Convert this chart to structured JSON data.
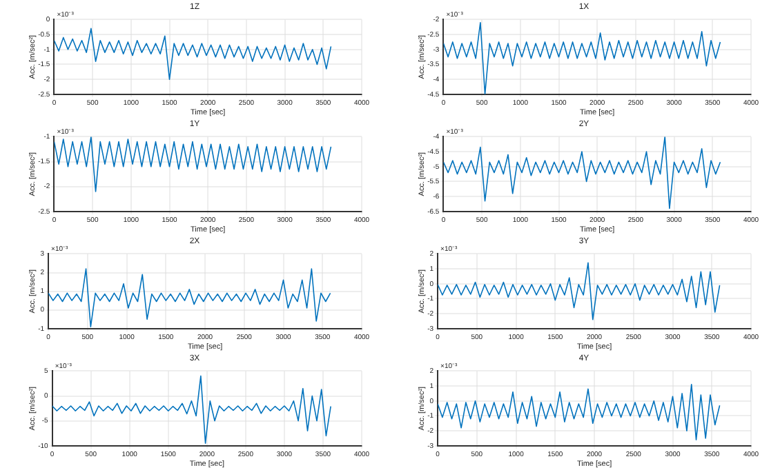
{
  "chart_data": [
    {
      "type": "line",
      "title": "1Z",
      "xlabel": "Time [sec]",
      "ylabel": "Acc. [m/sec²]",
      "annotations": [
        "×10⁻³"
      ],
      "xlim": [
        0,
        4000
      ],
      "xticks": [
        0,
        500,
        1000,
        1500,
        2000,
        2500,
        3000,
        3500,
        4000
      ],
      "ylim": [
        -2.5,
        0
      ],
      "yticks": [
        -2.5,
        -2,
        -1.5,
        -1,
        -0.5,
        0
      ],
      "grid": true,
      "marker": "none",
      "x": [
        0,
        60,
        120,
        180,
        240,
        300,
        360,
        420,
        480,
        540,
        600,
        660,
        720,
        780,
        840,
        900,
        960,
        1020,
        1080,
        1140,
        1200,
        1260,
        1320,
        1380,
        1440,
        1500,
        1560,
        1620,
        1680,
        1740,
        1800,
        1860,
        1920,
        1980,
        2040,
        2100,
        2160,
        2220,
        2280,
        2340,
        2400,
        2460,
        2520,
        2580,
        2640,
        2700,
        2760,
        2820,
        2880,
        2940,
        3000,
        3060,
        3120,
        3180,
        3240,
        3300,
        3360,
        3420,
        3480,
        3540,
        3600
      ],
      "series": [
        {
          "color": "#0072bd",
          "values": [
            -0.7,
            -1.05,
            -0.6,
            -1.0,
            -0.65,
            -1.05,
            -0.7,
            -1.1,
            -0.3,
            -1.4,
            -0.7,
            -1.1,
            -0.75,
            -1.1,
            -0.7,
            -1.15,
            -0.75,
            -1.2,
            -0.7,
            -1.1,
            -0.8,
            -1.15,
            -0.8,
            -1.15,
            -0.55,
            -2.0,
            -0.8,
            -1.2,
            -0.8,
            -1.2,
            -0.85,
            -1.25,
            -0.8,
            -1.2,
            -0.85,
            -1.25,
            -0.85,
            -1.3,
            -0.85,
            -1.25,
            -0.9,
            -1.3,
            -0.9,
            -1.4,
            -0.9,
            -1.3,
            -0.95,
            -1.3,
            -0.9,
            -1.35,
            -0.85,
            -1.4,
            -0.95,
            -1.35,
            -0.8,
            -1.35,
            -1.0,
            -1.5,
            -0.95,
            -1.65,
            -0.9
          ]
        }
      ]
    },
    {
      "type": "line",
      "title": "1X",
      "xlabel": "Time [sec]",
      "ylabel": "Acc. [m/sec²]",
      "annotations": [
        "×10⁻³"
      ],
      "xlim": [
        0,
        4000
      ],
      "xticks": [
        0,
        500,
        1000,
        1500,
        2000,
        2500,
        3000,
        3500,
        4000
      ],
      "ylim": [
        -4.5,
        -2
      ],
      "yticks": [
        -4.5,
        -4,
        -3.5,
        -3,
        -2.5,
        -2
      ],
      "grid": true,
      "marker": "none",
      "x": [
        0,
        60,
        120,
        180,
        240,
        300,
        360,
        420,
        480,
        540,
        600,
        660,
        720,
        780,
        840,
        900,
        960,
        1020,
        1080,
        1140,
        1200,
        1260,
        1320,
        1380,
        1440,
        1500,
        1560,
        1620,
        1680,
        1740,
        1800,
        1860,
        1920,
        1980,
        2040,
        2100,
        2160,
        2220,
        2280,
        2340,
        2400,
        2460,
        2520,
        2580,
        2640,
        2700,
        2760,
        2820,
        2880,
        2940,
        3000,
        3060,
        3120,
        3180,
        3240,
        3300,
        3360,
        3420,
        3480,
        3540,
        3600
      ],
      "series": [
        {
          "color": "#0072bd",
          "values": [
            -2.8,
            -3.25,
            -2.75,
            -3.3,
            -2.8,
            -3.25,
            -2.75,
            -3.3,
            -2.1,
            -4.5,
            -2.8,
            -3.25,
            -2.75,
            -3.3,
            -2.8,
            -3.55,
            -2.8,
            -3.25,
            -2.75,
            -3.3,
            -2.8,
            -3.25,
            -2.75,
            -3.3,
            -2.8,
            -3.25,
            -2.75,
            -3.3,
            -2.75,
            -3.3,
            -2.8,
            -3.25,
            -2.75,
            -3.3,
            -2.45,
            -3.35,
            -2.75,
            -3.3,
            -2.7,
            -3.25,
            -2.75,
            -3.3,
            -2.7,
            -3.25,
            -2.75,
            -3.3,
            -2.7,
            -3.25,
            -2.75,
            -3.3,
            -2.75,
            -3.3,
            -2.7,
            -3.3,
            -2.75,
            -3.3,
            -2.4,
            -3.55,
            -2.7,
            -3.3,
            -2.75
          ]
        }
      ]
    },
    {
      "type": "line",
      "title": "1Y",
      "xlabel": "Time [sec]",
      "ylabel": "Acc. [m/sec²]",
      "annotations": [
        "×10⁻³"
      ],
      "xlim": [
        0,
        4000
      ],
      "xticks": [
        0,
        500,
        1000,
        1500,
        2000,
        2500,
        3000,
        3500,
        4000
      ],
      "ylim": [
        -2.5,
        -1
      ],
      "yticks": [
        -2.5,
        -2,
        -1.5,
        -1
      ],
      "grid": true,
      "marker": "none",
      "x": [
        0,
        60,
        120,
        180,
        240,
        300,
        360,
        420,
        480,
        540,
        600,
        660,
        720,
        780,
        840,
        900,
        960,
        1020,
        1080,
        1140,
        1200,
        1260,
        1320,
        1380,
        1440,
        1500,
        1560,
        1620,
        1680,
        1740,
        1800,
        1860,
        1920,
        1980,
        2040,
        2100,
        2160,
        2220,
        2280,
        2340,
        2400,
        2460,
        2520,
        2580,
        2640,
        2700,
        2760,
        2820,
        2880,
        2940,
        3000,
        3060,
        3120,
        3180,
        3240,
        3300,
        3360,
        3420,
        3480,
        3540,
        3600
      ],
      "series": [
        {
          "color": "#0072bd",
          "values": [
            -1.1,
            -1.55,
            -1.05,
            -1.6,
            -1.1,
            -1.55,
            -1.1,
            -1.6,
            -1.0,
            -2.1,
            -1.1,
            -1.55,
            -1.1,
            -1.6,
            -1.1,
            -1.6,
            -1.05,
            -1.55,
            -1.1,
            -1.6,
            -1.1,
            -1.6,
            -1.1,
            -1.6,
            -1.15,
            -1.6,
            -1.1,
            -1.65,
            -1.15,
            -1.6,
            -1.1,
            -1.65,
            -1.15,
            -1.6,
            -1.15,
            -1.65,
            -1.15,
            -1.65,
            -1.2,
            -1.65,
            -1.15,
            -1.65,
            -1.2,
            -1.65,
            -1.15,
            -1.7,
            -1.2,
            -1.65,
            -1.2,
            -1.7,
            -1.2,
            -1.65,
            -1.2,
            -1.7,
            -1.2,
            -1.65,
            -1.2,
            -1.7,
            -1.2,
            -1.65,
            -1.2
          ]
        }
      ]
    },
    {
      "type": "line",
      "title": "2Y",
      "xlabel": "Time [sec]",
      "ylabel": "Acc. [m/sec²]",
      "annotations": [
        "×10⁻³"
      ],
      "xlim": [
        0,
        4000
      ],
      "xticks": [
        0,
        500,
        1000,
        1500,
        2000,
        2500,
        3000,
        3500,
        4000
      ],
      "ylim": [
        -6.5,
        -4
      ],
      "yticks": [
        -6.5,
        -6,
        -5.5,
        -5,
        -4.5,
        -4
      ],
      "grid": true,
      "marker": "none",
      "x": [
        0,
        60,
        120,
        180,
        240,
        300,
        360,
        420,
        480,
        540,
        600,
        660,
        720,
        780,
        840,
        900,
        960,
        1020,
        1080,
        1140,
        1200,
        1260,
        1320,
        1380,
        1440,
        1500,
        1560,
        1620,
        1680,
        1740,
        1800,
        1860,
        1920,
        1980,
        2040,
        2100,
        2160,
        2220,
        2280,
        2340,
        2400,
        2460,
        2520,
        2580,
        2640,
        2700,
        2760,
        2820,
        2880,
        2940,
        3000,
        3060,
        3120,
        3180,
        3240,
        3300,
        3360,
        3420,
        3480,
        3540,
        3600
      ],
      "series": [
        {
          "color": "#0072bd",
          "values": [
            -4.85,
            -5.2,
            -4.8,
            -5.25,
            -4.85,
            -5.2,
            -4.8,
            -5.25,
            -4.35,
            -6.15,
            -4.85,
            -5.2,
            -4.8,
            -5.25,
            -4.6,
            -5.9,
            -4.85,
            -5.2,
            -4.7,
            -5.3,
            -4.85,
            -5.2,
            -4.8,
            -5.25,
            -4.85,
            -5.2,
            -4.8,
            -5.25,
            -4.85,
            -5.2,
            -4.5,
            -5.5,
            -4.8,
            -5.25,
            -4.85,
            -5.2,
            -4.8,
            -5.25,
            -4.85,
            -5.2,
            -4.8,
            -5.25,
            -4.85,
            -5.2,
            -4.5,
            -5.6,
            -4.8,
            -5.25,
            -4.0,
            -6.4,
            -4.85,
            -5.2,
            -4.8,
            -5.25,
            -4.85,
            -5.2,
            -4.4,
            -5.7,
            -4.8,
            -5.25,
            -4.85
          ]
        }
      ]
    },
    {
      "type": "line",
      "title": "2X",
      "xlabel": "Time [sec]",
      "ylabel": "Acc. [m/sec²]",
      "annotations": [
        "×10⁻³"
      ],
      "xlim": [
        0,
        4000
      ],
      "xticks": [
        0,
        500,
        1000,
        1500,
        2000,
        2500,
        3000,
        3500,
        4000
      ],
      "ylim": [
        -1,
        3
      ],
      "yticks": [
        -1,
        0,
        1,
        2,
        3
      ],
      "grid": true,
      "marker": "none",
      "x": [
        0,
        60,
        120,
        180,
        240,
        300,
        360,
        420,
        480,
        540,
        600,
        660,
        720,
        780,
        840,
        900,
        960,
        1020,
        1080,
        1140,
        1200,
        1260,
        1320,
        1380,
        1440,
        1500,
        1560,
        1620,
        1680,
        1740,
        1800,
        1860,
        1920,
        1980,
        2040,
        2100,
        2160,
        2220,
        2280,
        2340,
        2400,
        2460,
        2520,
        2580,
        2640,
        2700,
        2760,
        2820,
        2880,
        2940,
        3000,
        3060,
        3120,
        3180,
        3240,
        3300,
        3360,
        3420,
        3480,
        3540,
        3600
      ],
      "series": [
        {
          "color": "#0072bd",
          "values": [
            0.9,
            0.5,
            0.85,
            0.45,
            0.9,
            0.5,
            0.85,
            0.45,
            2.2,
            -0.9,
            0.9,
            0.5,
            0.85,
            0.45,
            0.9,
            0.5,
            1.4,
            0.1,
            0.9,
            0.45,
            1.9,
            -0.5,
            0.85,
            0.45,
            0.9,
            0.5,
            0.85,
            0.45,
            0.9,
            0.5,
            1.1,
            0.3,
            0.85,
            0.45,
            0.9,
            0.5,
            0.85,
            0.45,
            0.9,
            0.5,
            0.85,
            0.45,
            0.9,
            0.5,
            1.1,
            0.3,
            0.85,
            0.45,
            0.9,
            0.5,
            1.6,
            0.1,
            0.85,
            0.45,
            1.6,
            0.1,
            2.2,
            -0.6,
            0.9,
            0.45,
            0.9
          ]
        }
      ]
    },
    {
      "type": "line",
      "title": "3Y",
      "xlabel": "Time [sec]",
      "ylabel": "Acc. [m/sec²]",
      "annotations": [
        "×10⁻³"
      ],
      "xlim": [
        0,
        4000
      ],
      "xticks": [
        0,
        500,
        1000,
        1500,
        2000,
        2500,
        3000,
        3500,
        4000
      ],
      "ylim": [
        -3,
        2
      ],
      "yticks": [
        -3,
        -2,
        -1,
        0,
        1,
        2
      ],
      "grid": true,
      "marker": "none",
      "x": [
        0,
        60,
        120,
        180,
        240,
        300,
        360,
        420,
        480,
        540,
        600,
        660,
        720,
        780,
        840,
        900,
        960,
        1020,
        1080,
        1140,
        1200,
        1260,
        1320,
        1380,
        1440,
        1500,
        1560,
        1620,
        1680,
        1740,
        1800,
        1860,
        1920,
        1980,
        2040,
        2100,
        2160,
        2220,
        2280,
        2340,
        2400,
        2460,
        2520,
        2580,
        2640,
        2700,
        2760,
        2820,
        2880,
        2940,
        3000,
        3060,
        3120,
        3180,
        3240,
        3300,
        3360,
        3420,
        3480,
        3540,
        3600
      ],
      "series": [
        {
          "color": "#0072bd",
          "values": [
            -0.05,
            -0.75,
            -0.1,
            -0.7,
            -0.05,
            -0.75,
            -0.1,
            -0.7,
            0.1,
            -0.9,
            -0.05,
            -0.75,
            -0.1,
            -0.7,
            0.1,
            -0.9,
            -0.05,
            -0.75,
            -0.1,
            -0.7,
            -0.05,
            -0.75,
            -0.1,
            -0.7,
            0,
            -1.1,
            -0.05,
            -0.75,
            0.4,
            -1.6,
            -0.05,
            -0.75,
            1.4,
            -2.4,
            -0.1,
            -0.7,
            -0.05,
            -0.75,
            -0.1,
            -0.7,
            -0.05,
            -0.75,
            0,
            -1.1,
            -0.1,
            -0.7,
            -0.05,
            -0.75,
            -0.1,
            -0.7,
            -0.05,
            -0.75,
            0.3,
            -1.2,
            0.5,
            -1.6,
            0.8,
            -1.4,
            0.8,
            -1.9,
            -0.1
          ]
        }
      ]
    },
    {
      "type": "line",
      "title": "3X",
      "xlabel": "Time [sec]",
      "ylabel": "Acc. [m/sec²]",
      "annotations": [
        "×10⁻³"
      ],
      "xlim": [
        0,
        4000
      ],
      "xticks": [
        0,
        500,
        1000,
        1500,
        2000,
        2500,
        3000,
        3500,
        4000
      ],
      "ylim": [
        -10,
        5
      ],
      "yticks": [
        -10,
        -5,
        0,
        5
      ],
      "grid": true,
      "marker": "none",
      "x": [
        0,
        60,
        120,
        180,
        240,
        300,
        360,
        420,
        480,
        540,
        600,
        660,
        720,
        780,
        840,
        900,
        960,
        1020,
        1080,
        1140,
        1200,
        1260,
        1320,
        1380,
        1440,
        1500,
        1560,
        1620,
        1680,
        1740,
        1800,
        1860,
        1920,
        1980,
        2040,
        2100,
        2160,
        2220,
        2280,
        2340,
        2400,
        2460,
        2520,
        2580,
        2640,
        2700,
        2760,
        2820,
        2880,
        2940,
        3000,
        3060,
        3120,
        3180,
        3240,
        3300,
        3360,
        3420,
        3480,
        3540,
        3600
      ],
      "series": [
        {
          "color": "#0072bd",
          "values": [
            -2,
            -3,
            -2.1,
            -2.9,
            -2,
            -3,
            -2.1,
            -2.9,
            -1.2,
            -4,
            -2,
            -3,
            -2.1,
            -2.9,
            -1.5,
            -3.5,
            -2,
            -3,
            -1.5,
            -3.5,
            -2,
            -3,
            -2.1,
            -2.9,
            -2,
            -3,
            -2.1,
            -2.9,
            -1.5,
            -3.6,
            -1,
            -4,
            4,
            -9.5,
            -1,
            -5,
            -2,
            -3,
            -2.1,
            -2.9,
            -2,
            -3,
            -2.1,
            -2.9,
            -1.5,
            -3.5,
            -2,
            -3,
            -2.1,
            -2.9,
            -2,
            -3,
            -1,
            -5,
            1.5,
            -7,
            0,
            -5,
            1.3,
            -8,
            -2.1
          ]
        }
      ]
    },
    {
      "type": "line",
      "title": "4Y",
      "xlabel": "Time [sec]",
      "ylabel": "Acc. [m/sec²]",
      "annotations": [
        "×10⁻³"
      ],
      "xlim": [
        0,
        4000
      ],
      "xticks": [
        0,
        500,
        1000,
        1500,
        2000,
        2500,
        3000,
        3500,
        4000
      ],
      "ylim": [
        -3,
        2
      ],
      "yticks": [
        -3,
        -2,
        -1,
        0,
        1,
        2
      ],
      "grid": true,
      "marker": "none",
      "x": [
        0,
        60,
        120,
        180,
        240,
        300,
        360,
        420,
        480,
        540,
        600,
        660,
        720,
        780,
        840,
        900,
        960,
        1020,
        1080,
        1140,
        1200,
        1260,
        1320,
        1380,
        1440,
        1500,
        1560,
        1620,
        1680,
        1740,
        1800,
        1860,
        1920,
        1980,
        2040,
        2100,
        2160,
        2220,
        2280,
        2340,
        2400,
        2460,
        2520,
        2580,
        2640,
        2700,
        2760,
        2820,
        2880,
        2940,
        3000,
        3060,
        3120,
        3180,
        3240,
        3300,
        3360,
        3420,
        3480,
        3540,
        3600
      ],
      "series": [
        {
          "color": "#0072bd",
          "values": [
            -0.2,
            -1.1,
            -0.1,
            -1.2,
            -0.2,
            -1.8,
            -0.1,
            -1.2,
            0,
            -1.4,
            -0.2,
            -1.1,
            -0.1,
            -1.2,
            -0.2,
            -1.1,
            0.6,
            -1.5,
            -0.1,
            -1.2,
            0.3,
            -1.7,
            -0.1,
            -1.2,
            -0.2,
            -1.1,
            0.6,
            -1.4,
            -0.1,
            -1.2,
            -0.2,
            -1.1,
            0.8,
            -1.5,
            -0.2,
            -1.1,
            -0.1,
            -1.0,
            -0.2,
            -1.1,
            -0.2,
            -1.0,
            -0.1,
            -1.1,
            -0.2,
            -1.0,
            0,
            -1.3,
            -0.1,
            -1.4,
            0.3,
            -1.8,
            0.5,
            -2.0,
            1.1,
            -2.6,
            0.4,
            -2.5,
            0.4,
            -1.6,
            -0.3
          ]
        }
      ]
    }
  ]
}
